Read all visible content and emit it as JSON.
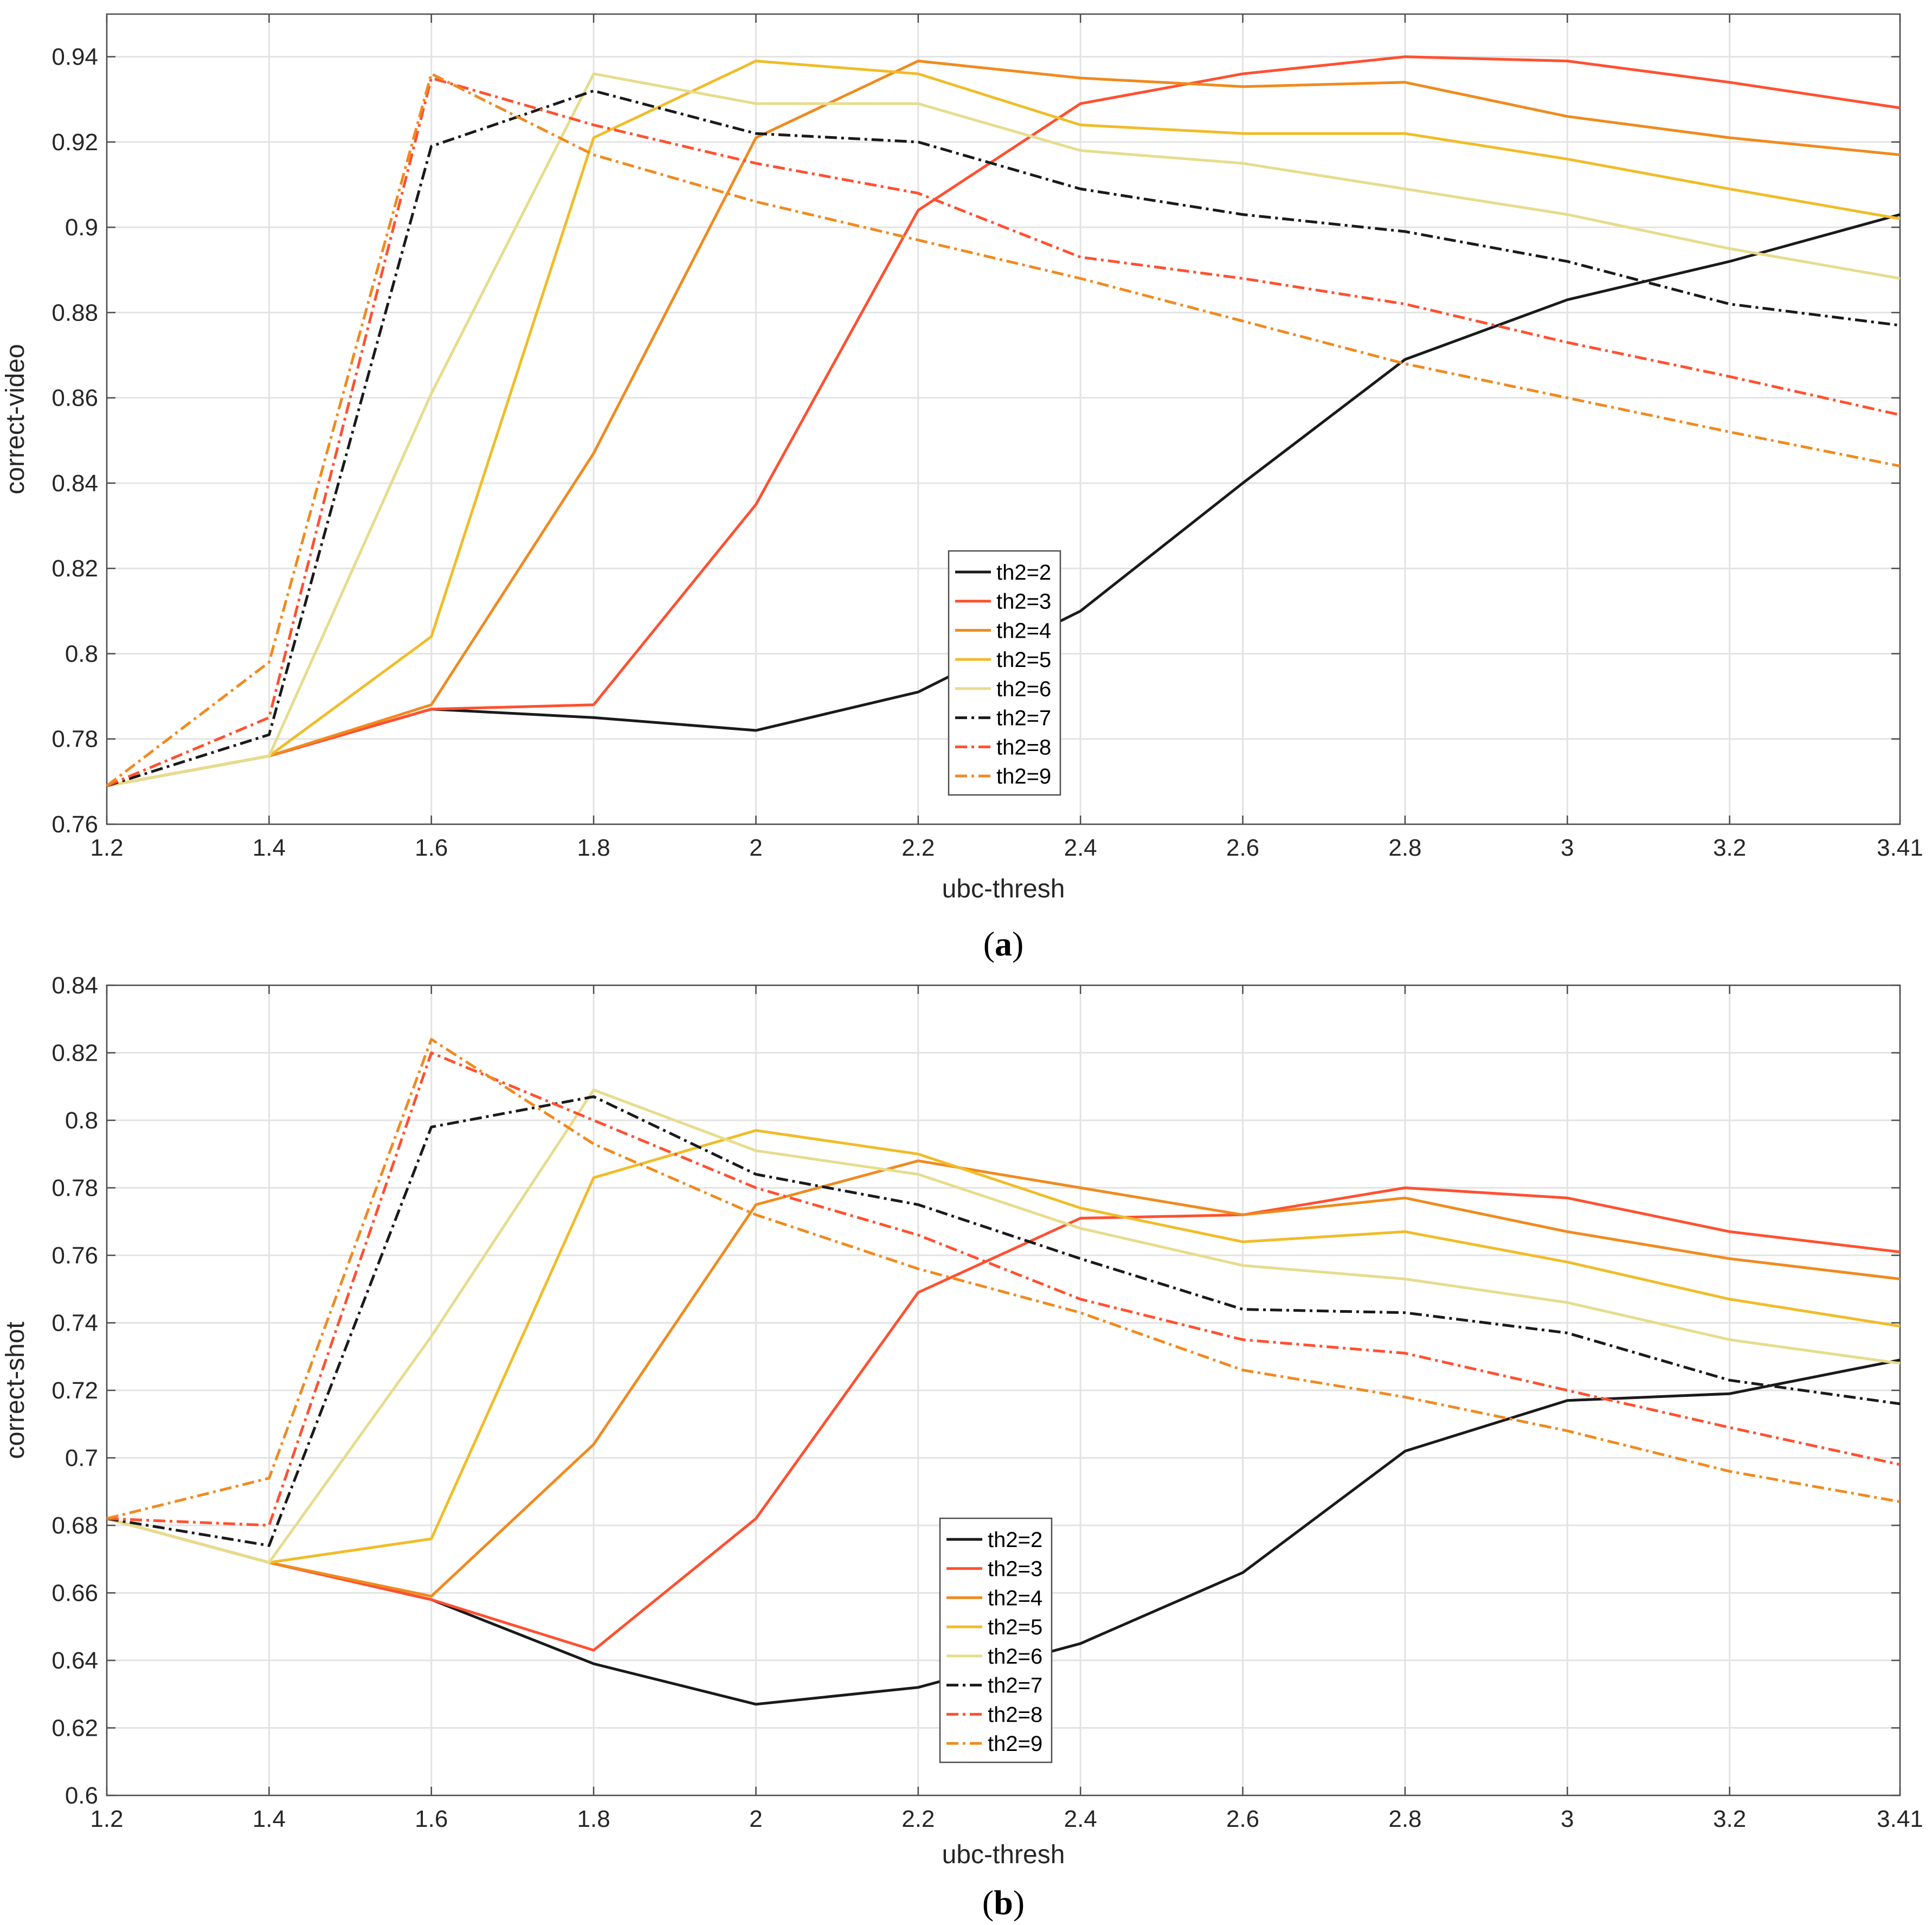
{
  "chart_data": [
    {
      "type": "line",
      "caption_letter": "a",
      "xlabel": "ubc-thresh",
      "ylabel": "correct-video",
      "xlim": [
        1.2,
        3.41
      ],
      "ylim": [
        0.76,
        0.95
      ],
      "xticks": [
        1.2,
        1.4,
        1.6,
        1.8,
        2,
        2.2,
        2.4,
        2.6,
        2.8,
        3,
        3.2,
        3.41
      ],
      "xtick_labels": [
        "1.2",
        "1.4",
        "1.6",
        "1.8",
        "2",
        "2.2",
        "2.4",
        "2.6",
        "2.8",
        "3",
        "3.2",
        "3.41"
      ],
      "yticks": [
        0.76,
        0.78,
        0.8,
        0.82,
        0.84,
        0.86,
        0.88,
        0.9,
        0.92,
        0.94
      ],
      "ytick_labels": [
        "0.76",
        "0.78",
        "0.8",
        "0.82",
        "0.84",
        "0.86",
        "0.88",
        "0.9",
        "0.92",
        "0.94"
      ],
      "grid": true,
      "legend_position": "center-bottom",
      "x": [
        1.2,
        1.4,
        1.6,
        1.8,
        2.0,
        2.2,
        2.4,
        2.6,
        2.8,
        3.0,
        3.2,
        3.41
      ],
      "series": [
        {
          "name": "th2=2",
          "color": "#1a1a1a",
          "dash": "solid",
          "values": [
            0.769,
            0.776,
            0.787,
            0.785,
            0.782,
            0.791,
            0.81,
            0.84,
            0.869,
            0.883,
            0.892,
            0.903
          ]
        },
        {
          "name": "th2=3",
          "color": "#ff5030",
          "dash": "solid",
          "values": [
            0.769,
            0.776,
            0.787,
            0.788,
            0.835,
            0.904,
            0.929,
            0.936,
            0.94,
            0.939,
            0.934,
            0.928
          ]
        },
        {
          "name": "th2=4",
          "color": "#f08a1e",
          "dash": "solid",
          "values": [
            0.769,
            0.776,
            0.788,
            0.847,
            0.921,
            0.939,
            0.935,
            0.933,
            0.934,
            0.926,
            0.921,
            0.917
          ]
        },
        {
          "name": "th2=5",
          "color": "#f0bc28",
          "dash": "solid",
          "values": [
            0.769,
            0.776,
            0.804,
            0.921,
            0.939,
            0.936,
            0.924,
            0.922,
            0.922,
            0.916,
            0.909,
            0.902
          ]
        },
        {
          "name": "th2=6",
          "color": "#e6dc8c",
          "dash": "solid",
          "values": [
            0.769,
            0.776,
            0.861,
            0.936,
            0.929,
            0.929,
            0.918,
            0.915,
            0.909,
            0.903,
            0.895,
            0.888
          ]
        },
        {
          "name": "th2=7",
          "color": "#1a1a1a",
          "dash": "dashdot",
          "values": [
            0.769,
            0.781,
            0.919,
            0.932,
            0.922,
            0.92,
            0.909,
            0.903,
            0.899,
            0.892,
            0.882,
            0.877
          ]
        },
        {
          "name": "th2=8",
          "color": "#ff5030",
          "dash": "dashdot",
          "values": [
            0.769,
            0.785,
            0.935,
            0.924,
            0.915,
            0.908,
            0.893,
            0.888,
            0.882,
            0.873,
            0.865,
            0.856
          ]
        },
        {
          "name": "th2=9",
          "color": "#f08a1e",
          "dash": "dashdot",
          "values": [
            0.769,
            0.798,
            0.936,
            0.917,
            0.906,
            0.897,
            0.888,
            0.878,
            0.868,
            0.86,
            0.852,
            0.844
          ]
        }
      ]
    },
    {
      "type": "line",
      "caption_letter": "b",
      "xlabel": "ubc-thresh",
      "ylabel": "correct-shot",
      "xlim": [
        1.2,
        3.41
      ],
      "ylim": [
        0.6,
        0.84
      ],
      "xticks": [
        1.2,
        1.4,
        1.6,
        1.8,
        2,
        2.2,
        2.4,
        2.6,
        2.8,
        3,
        3.2,
        3.41
      ],
      "xtick_labels": [
        "1.2",
        "1.4",
        "1.6",
        "1.8",
        "2",
        "2.2",
        "2.4",
        "2.6",
        "2.8",
        "3",
        "3.2",
        "3.41"
      ],
      "yticks": [
        0.6,
        0.62,
        0.64,
        0.66,
        0.68,
        0.7,
        0.72,
        0.74,
        0.76,
        0.78,
        0.8,
        0.82,
        0.84
      ],
      "ytick_labels": [
        "0.6",
        "0.62",
        "0.64",
        "0.66",
        "0.68",
        "0.7",
        "0.72",
        "0.74",
        "0.76",
        "0.78",
        "0.8",
        "0.82",
        "0.84"
      ],
      "grid": true,
      "legend_position": "center-bottom",
      "x": [
        1.2,
        1.4,
        1.6,
        1.8,
        2.0,
        2.2,
        2.4,
        2.6,
        2.8,
        3.0,
        3.2,
        3.41
      ],
      "series": [
        {
          "name": "th2=2",
          "color": "#1a1a1a",
          "dash": "solid",
          "values": [
            0.682,
            0.669,
            0.658,
            0.639,
            0.627,
            0.632,
            0.645,
            0.666,
            0.702,
            0.717,
            0.719,
            0.729
          ]
        },
        {
          "name": "th2=3",
          "color": "#ff5030",
          "dash": "solid",
          "values": [
            0.682,
            0.669,
            0.658,
            0.643,
            0.682,
            0.749,
            0.771,
            0.772,
            0.78,
            0.777,
            0.767,
            0.761
          ]
        },
        {
          "name": "th2=4",
          "color": "#f08a1e",
          "dash": "solid",
          "values": [
            0.682,
            0.669,
            0.659,
            0.704,
            0.775,
            0.788,
            0.78,
            0.772,
            0.777,
            0.767,
            0.759,
            0.753
          ]
        },
        {
          "name": "th2=5",
          "color": "#f0bc28",
          "dash": "solid",
          "values": [
            0.682,
            0.669,
            0.676,
            0.783,
            0.797,
            0.79,
            0.774,
            0.764,
            0.767,
            0.758,
            0.747,
            0.739
          ]
        },
        {
          "name": "th2=6",
          "color": "#e6dc8c",
          "dash": "solid",
          "values": [
            0.682,
            0.669,
            0.736,
            0.809,
            0.791,
            0.784,
            0.768,
            0.757,
            0.753,
            0.746,
            0.735,
            0.728
          ]
        },
        {
          "name": "th2=7",
          "color": "#1a1a1a",
          "dash": "dashdot",
          "values": [
            0.682,
            0.674,
            0.798,
            0.807,
            0.784,
            0.775,
            0.759,
            0.744,
            0.743,
            0.737,
            0.723,
            0.716
          ]
        },
        {
          "name": "th2=8",
          "color": "#ff5030",
          "dash": "dashdot",
          "values": [
            0.682,
            0.68,
            0.82,
            0.8,
            0.78,
            0.766,
            0.747,
            0.735,
            0.731,
            0.72,
            0.709,
            0.698
          ]
        },
        {
          "name": "th2=9",
          "color": "#f08a1e",
          "dash": "dashdot",
          "values": [
            0.682,
            0.694,
            0.824,
            0.793,
            0.772,
            0.756,
            0.743,
            0.726,
            0.718,
            0.708,
            0.696,
            0.687
          ]
        }
      ]
    }
  ]
}
